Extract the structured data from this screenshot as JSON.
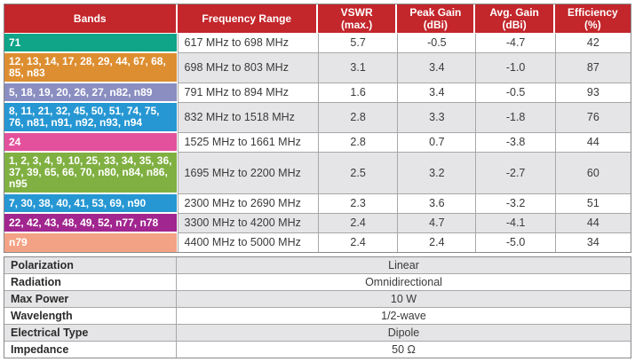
{
  "colors": {
    "header_bg": "#C3262B",
    "alt_row_bg": "#E5E5E7"
  },
  "table": {
    "headers": [
      {
        "line1": "Bands",
        "line2": ""
      },
      {
        "line1": "Frequency Range",
        "line2": ""
      },
      {
        "line1": "VSWR",
        "line2": "(max.)"
      },
      {
        "line1": "Peak Gain",
        "line2": "(dBi)"
      },
      {
        "line1": "Avg. Gain",
        "line2": "(dBi)"
      },
      {
        "line1": "Efficiency",
        "line2": "(%)"
      }
    ],
    "rows": [
      {
        "bands": "71",
        "color": "#10A489",
        "frequency": "617 MHz to 698 MHz",
        "vswr": "5.7",
        "peak_gain": "-0.5",
        "avg_gain": "-4.7",
        "efficiency": "42"
      },
      {
        "bands": "12, 13, 14, 17, 28, 29, 44, 67, 68, 85, n83",
        "color": "#DD8E31",
        "frequency": "698 MHz to 803 MHz",
        "vswr": "3.1",
        "peak_gain": "3.4",
        "avg_gain": "-1.0",
        "efficiency": "87"
      },
      {
        "bands": "5, 18, 19, 20, 26, 27, n82, n89",
        "color": "#8A8EC0",
        "frequency": "791 MHz to 894 MHz",
        "vswr": "1.6",
        "peak_gain": "3.4",
        "avg_gain": "-0.5",
        "efficiency": "93"
      },
      {
        "bands": "8, 11, 21, 32, 45, 50, 51, 74, 75, 76, n81, n91, n92, n93, n94",
        "color": "#2697D3",
        "frequency": "832 MHz to 1518 MHz",
        "vswr": "2.8",
        "peak_gain": "3.3",
        "avg_gain": "-1.8",
        "efficiency": "76"
      },
      {
        "bands": "24",
        "color": "#E3519C",
        "frequency": "1525 MHz to 1661 MHz",
        "vswr": "2.8",
        "peak_gain": "0.7",
        "avg_gain": "-3.8",
        "efficiency": "44"
      },
      {
        "bands": "1, 2, 3, 4, 9, 10, 25, 33, 34, 35, 36, 37, 39, 65, 66, 70, n80, n84, n86, n95",
        "color": "#80B042",
        "frequency": "1695 MHz to 2200 MHz",
        "vswr": "2.5",
        "peak_gain": "3.2",
        "avg_gain": "-2.7",
        "efficiency": "60"
      },
      {
        "bands": "7, 30, 38, 40, 41, 53, 69, n90",
        "color": "#2697D3",
        "frequency": "2300 MHz to 2690 MHz",
        "vswr": "2.3",
        "peak_gain": "3.6",
        "avg_gain": "-3.2",
        "efficiency": "51"
      },
      {
        "bands": "22, 42, 43, 48, 49, 52, n77, n78",
        "color": "#A1268F",
        "frequency": "3300 MHz to 4200 MHz",
        "vswr": "2.4",
        "peak_gain": "4.7",
        "avg_gain": "-4.1",
        "efficiency": "44"
      },
      {
        "bands": "n79",
        "color": "#F4A285",
        "frequency": "4400 MHz to 5000 MHz",
        "vswr": "2.4",
        "peak_gain": "2.4",
        "avg_gain": "-5.0",
        "efficiency": "34"
      }
    ]
  },
  "specs": {
    "rows": [
      {
        "label": "Polarization",
        "value": "Linear"
      },
      {
        "label": "Radiation",
        "value": "Omnidirectional"
      },
      {
        "label": "Max Power",
        "value": "10 W"
      },
      {
        "label": "Wavelength",
        "value": "1/2-wave"
      },
      {
        "label": "Electrical Type",
        "value": "Dipole"
      },
      {
        "label": "Impedance",
        "value": "50 Ω"
      }
    ]
  }
}
